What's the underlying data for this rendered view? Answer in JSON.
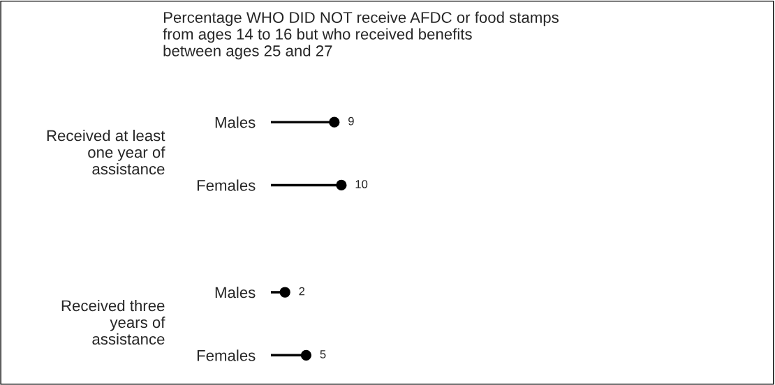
{
  "chart_data": {
    "type": "lollipop",
    "orientation": "horizontal",
    "title": "Percentage WHO DID NOT receive AFDC or food stamps\nfrom ages 14 to 16 but who received benefits\nbetween ages 25 and 27",
    "categories": [
      "Males",
      "Females",
      "Males",
      "Females"
    ],
    "values": [
      9,
      10,
      2,
      5
    ],
    "color": "#000000",
    "marker": "circle",
    "data_labels": true,
    "tick_labels": "y",
    "grid": false,
    "legend": false,
    "annotations": [
      "Received at least\none year of\nassistance",
      "Received three\nyears of\nassistance"
    ]
  }
}
